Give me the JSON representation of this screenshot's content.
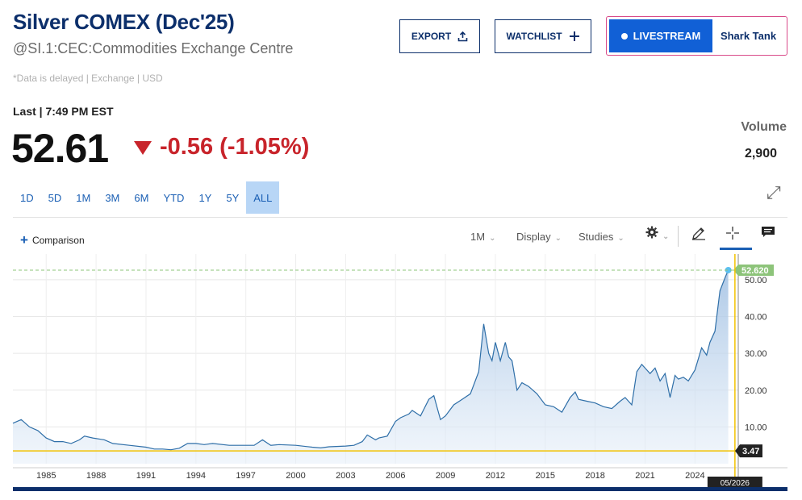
{
  "header": {
    "title": "Silver COMEX (Dec'25)",
    "subtitle": "@SI.1:CEC:Commodities Exchange Centre",
    "delayed": "*Data is delayed | Exchange | USD"
  },
  "actions": {
    "export_label": "EXPORT",
    "watchlist_label": "WATCHLIST",
    "livestream_label": "LIVESTREAM",
    "show_label": "Shark Tank"
  },
  "quote": {
    "last_label": "Last | 7:49 PM EST",
    "price": "52.61",
    "change": "-0.56 (-1.05%)",
    "volume_label": "Volume",
    "volume": "2,900"
  },
  "ranges": [
    "1D",
    "5D",
    "1M",
    "3M",
    "6M",
    "YTD",
    "1Y",
    "5Y",
    "ALL"
  ],
  "active_range": "ALL",
  "controls": {
    "comparison": "Comparison",
    "interval": "1M",
    "display": "Display",
    "studies": "Studies"
  },
  "colors": {
    "accent": "#1160d6",
    "down": "#c8242b",
    "line": "#2f6fa8",
    "crosshair": "#f2c200",
    "last_badge": "#8dc47a"
  },
  "icons": [
    "upload-icon",
    "plus-icon",
    "gear-icon",
    "pencil-icon",
    "crosshair-icon",
    "comment-icon",
    "expand-icon"
  ],
  "chart_data": {
    "type": "area",
    "x_ticks": [
      "1985",
      "1988",
      "1991",
      "1994",
      "1997",
      "2000",
      "2003",
      "2006",
      "2009",
      "2012",
      "2015",
      "2018",
      "2021",
      "2024"
    ],
    "y_ticks": [
      "10.00",
      "20.00",
      "30.00",
      "40.00",
      "50.00"
    ],
    "ylim": [
      0,
      57
    ],
    "xlim": [
      1983,
      2026.6
    ],
    "last_value_label": "52.620",
    "crosshair_value_label": "3.47",
    "crosshair_date_label": "05/2026",
    "crosshair": {
      "x": 2026.4,
      "y": 3.47
    },
    "series": [
      {
        "x": [
          1983.0,
          1983.5,
          1984.0,
          1984.5,
          1985.0,
          1985.5,
          1986.0,
          1986.5,
          1987.0,
          1987.3,
          1987.8,
          1988.5,
          1989.0,
          1990.0,
          1991.0,
          1991.5,
          1992.0,
          1992.5,
          1993.0,
          1993.5,
          1994.0,
          1994.5,
          1995.0,
          1996.0,
          1997.0,
          1997.5,
          1998.0,
          1998.5,
          1999.0,
          2000.0,
          2001.0,
          2001.5,
          2002.0,
          2003.0,
          2003.5,
          2004.0,
          2004.3,
          2004.8,
          2005.0,
          2005.5,
          2006.0,
          2006.3,
          2006.8,
          2007.0,
          2007.5,
          2008.0,
          2008.3,
          2008.7,
          2009.0,
          2009.5,
          2010.0,
          2010.5,
          2011.0,
          2011.3,
          2011.6,
          2011.8,
          2012.0,
          2012.3,
          2012.6,
          2012.8,
          2013.0,
          2013.3,
          2013.6,
          2014.0,
          2014.5,
          2015.0,
          2015.5,
          2016.0,
          2016.5,
          2016.8,
          2017.0,
          2017.5,
          2018.0,
          2018.5,
          2019.0,
          2019.5,
          2019.8,
          2020.2,
          2020.5,
          2020.8,
          2021.0,
          2021.3,
          2021.6,
          2021.9,
          2022.2,
          2022.5,
          2022.8,
          2023.0,
          2023.3,
          2023.6,
          2024.0,
          2024.4,
          2024.7,
          2024.9,
          2025.2,
          2025.5,
          2025.8,
          2026.0
        ],
        "y": [
          11,
          12,
          10,
          9,
          7,
          6,
          6,
          5.5,
          6.5,
          7.5,
          7,
          6.5,
          5.5,
          5,
          4.5,
          4,
          4,
          3.8,
          4.2,
          5.5,
          5.5,
          5.2,
          5.5,
          5,
          5,
          5,
          6.5,
          5,
          5.2,
          5,
          4.5,
          4.3,
          4.6,
          4.8,
          5,
          6,
          7.8,
          6.5,
          7,
          7.5,
          11.5,
          12.5,
          13.5,
          14.5,
          13,
          17.5,
          18.5,
          12,
          13,
          16,
          17.5,
          19,
          25,
          38,
          30,
          28,
          33,
          28,
          33,
          29,
          28,
          20,
          22,
          21,
          19,
          16,
          15.5,
          14,
          18,
          19.5,
          17.5,
          17,
          16.5,
          15.5,
          15,
          17,
          18,
          16,
          25,
          27,
          26,
          24.5,
          26,
          22.5,
          24.5,
          18,
          24,
          23,
          23.5,
          22.5,
          25.5,
          31.5,
          29.5,
          33,
          36,
          47,
          50.5,
          52.62
        ]
      }
    ]
  }
}
